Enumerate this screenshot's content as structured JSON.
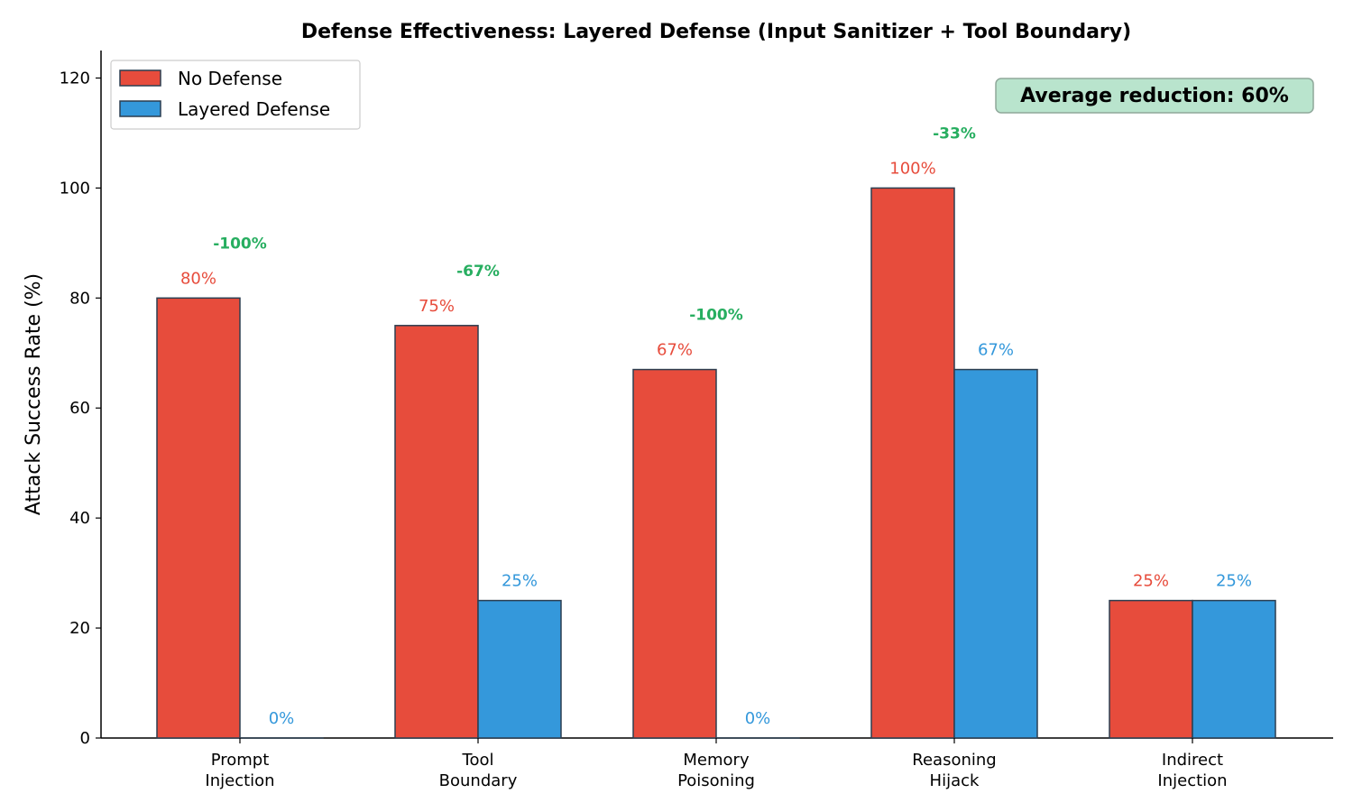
{
  "chart_data": {
    "type": "bar",
    "title": "Defense Effectiveness: Layered Defense (Input Sanitizer + Tool Boundary)",
    "xlabel": "",
    "ylabel": "Attack Success Rate (%)",
    "ylim": [
      0,
      125
    ],
    "yticks": [
      0,
      20,
      40,
      60,
      80,
      100,
      120
    ],
    "yticks_labels": [
      "0",
      "20",
      "40",
      "60",
      "80",
      "100",
      "120"
    ],
    "categories": [
      [
        "Prompt",
        "Injection"
      ],
      [
        "Tool",
        "Boundary"
      ],
      [
        "Memory",
        "Poisoning"
      ],
      [
        "Reasoning",
        "Hijack"
      ],
      [
        "Indirect",
        "Injection"
      ]
    ],
    "series": [
      {
        "name": "No Defense",
        "color": "#e74c3c",
        "values": [
          80,
          75,
          67,
          100,
          25
        ],
        "labels": [
          "80%",
          "75%",
          "67%",
          "100%",
          "25%"
        ]
      },
      {
        "name": "Layered Defense",
        "color": "#3498db",
        "values": [
          0,
          25,
          0,
          67,
          25
        ],
        "labels": [
          "0%",
          "25%",
          "0%",
          "67%",
          "25%"
        ]
      }
    ],
    "reductions": [
      {
        "label": "-100%",
        "value": 90
      },
      {
        "label": "-67%",
        "value": 85
      },
      {
        "label": "-100%",
        "value": 77
      },
      {
        "label": "-33%",
        "value": 110
      },
      null
    ],
    "reduction_color": "#27ae60",
    "legend_position": "top-left",
    "annotation": {
      "text": "Average reduction: 60%",
      "position": "top-right",
      "bg": "#b9e4cd",
      "border": "#8fa89a"
    },
    "bar_edge_color": "#2c3e50",
    "grid": false
  }
}
